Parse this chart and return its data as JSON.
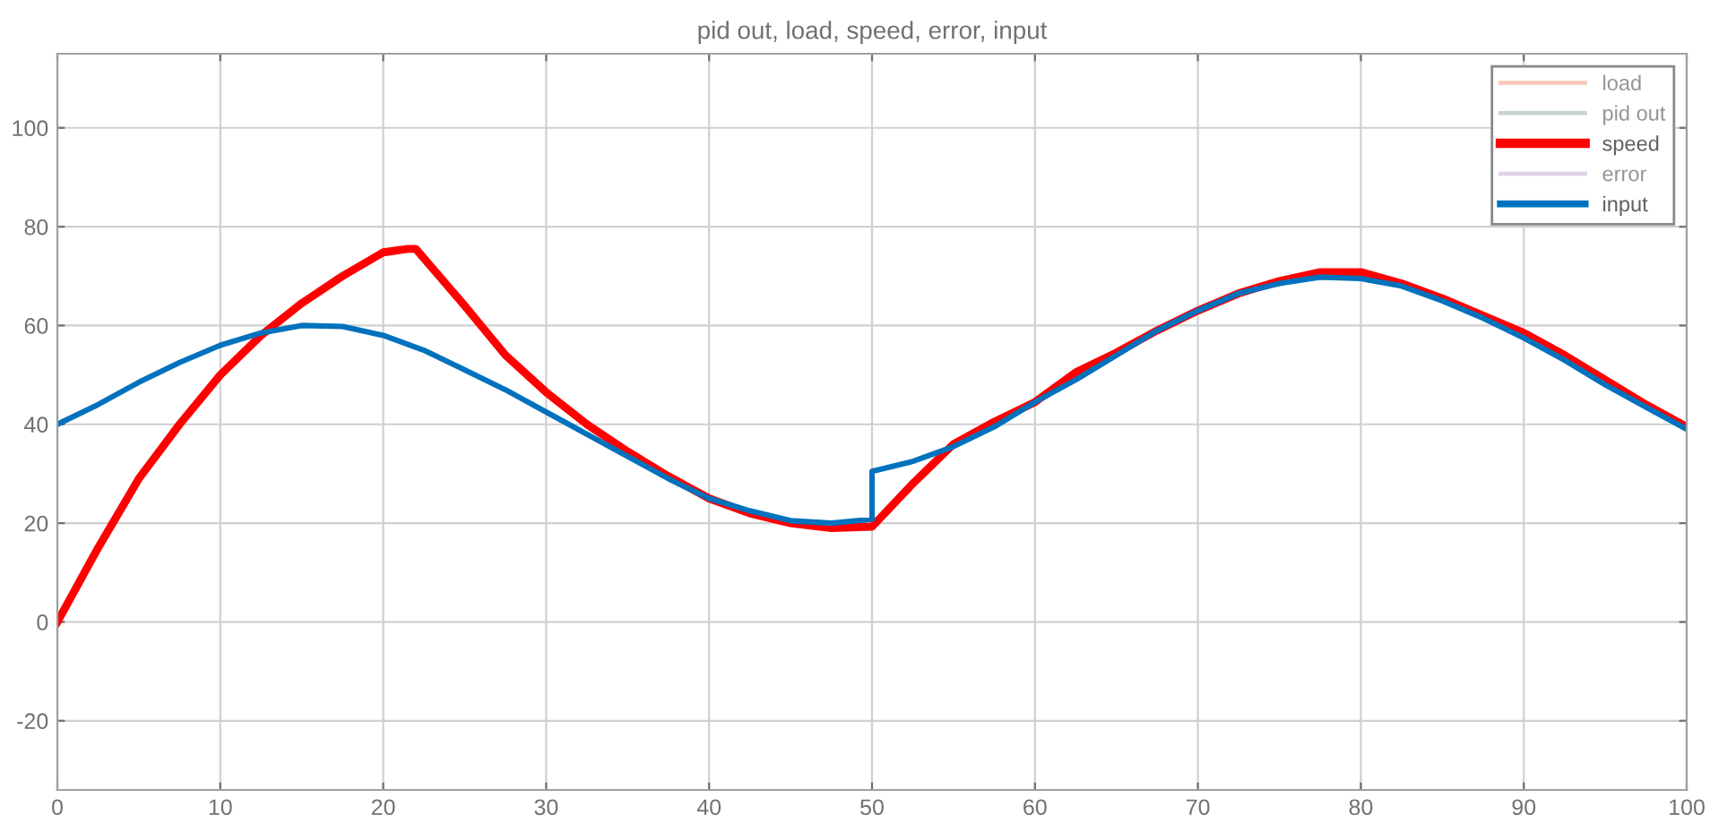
{
  "chart_data": {
    "type": "line",
    "title": "pid out, load, speed, error, input",
    "xlim": [
      0,
      100
    ],
    "xticks": [
      0,
      10,
      20,
      30,
      40,
      50,
      60,
      70,
      80,
      90,
      100
    ],
    "ylim": [
      -34,
      115
    ],
    "yticks": [
      -20,
      0,
      20,
      40,
      60,
      80,
      100
    ],
    "grid": true,
    "legend": "top right",
    "line_style": "solid",
    "marker": "none",
    "series": [
      {
        "name": "load",
        "color": "#f5c9b8"
      },
      {
        "name": "pid out",
        "color": "#c3d5cb"
      },
      {
        "name": "speed",
        "color": "#ff0000",
        "x": [
          0,
          2.5,
          5,
          7.5,
          10,
          12.5,
          15,
          17.5,
          20,
          21.5,
          22,
          25,
          27.5,
          30,
          32.5,
          35,
          37.5,
          40,
          42.5,
          45,
          47.5,
          50,
          52.5,
          55,
          57.5,
          60,
          62.5,
          65,
          67.5,
          70,
          72.5,
          75,
          77.5,
          80,
          82.5,
          85,
          87.5,
          90,
          92.5,
          95,
          97.5,
          100
        ],
        "values": [
          0,
          15,
          29,
          40,
          50,
          58,
          64.5,
          70,
          74.8,
          75.5,
          75.5,
          64,
          54,
          46.5,
          40,
          34.5,
          29.5,
          25,
          22,
          20,
          19,
          19.3,
          28,
          36,
          40.5,
          44.5,
          50.5,
          54.5,
          59,
          63,
          66.5,
          69,
          70.8,
          70.8,
          68.5,
          65.5,
          62,
          58.5,
          54,
          49,
          44,
          39.5
        ]
      },
      {
        "name": "error",
        "color": "#e2cfe8"
      },
      {
        "name": "input",
        "color": "#0072bd",
        "x": [
          0,
          2.5,
          5,
          7.5,
          10,
          12.5,
          15,
          17.5,
          20,
          22.5,
          25,
          27.5,
          30,
          32.5,
          35,
          37.5,
          40,
          42.5,
          45,
          47.5,
          50,
          50,
          52.5,
          55,
          57.5,
          60,
          62.5,
          65,
          67.5,
          70,
          72.5,
          75,
          77.5,
          80,
          82.5,
          85,
          87.5,
          90,
          92.5,
          95,
          97.5,
          100
        ],
        "values": [
          40,
          44,
          48.5,
          52.5,
          56,
          58.5,
          60,
          59.8,
          58,
          55,
          51,
          47,
          42.5,
          38,
          33.5,
          29,
          25,
          22.5,
          20.5,
          20,
          20.8,
          30.5,
          32.5,
          35.5,
          39.5,
          44.5,
          49,
          54,
          59,
          63,
          66.5,
          68.5,
          69.8,
          69.5,
          68,
          65,
          61.5,
          57.5,
          53,
          48,
          43.5,
          39
        ]
      }
    ]
  }
}
